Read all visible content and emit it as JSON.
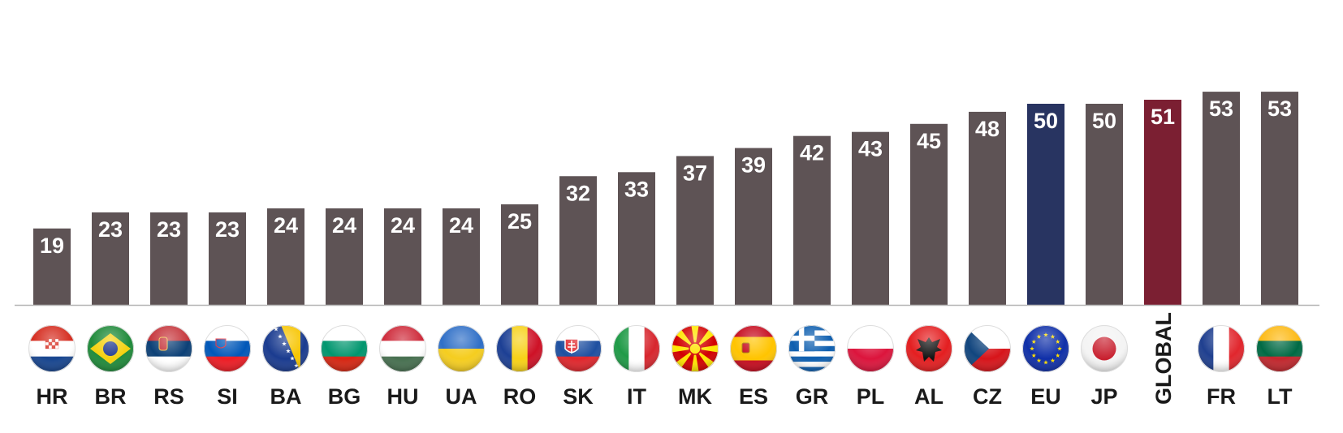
{
  "chart_data": {
    "type": "bar",
    "categories": [
      "HR",
      "BR",
      "RS",
      "SI",
      "BA",
      "BG",
      "HU",
      "UA",
      "RO",
      "SK",
      "IT",
      "MK",
      "ES",
      "GR",
      "PL",
      "AL",
      "CZ",
      "EU",
      "JP",
      "GLOBAL",
      "FR",
      "LT"
    ],
    "values": [
      19,
      23,
      23,
      23,
      24,
      24,
      24,
      24,
      25,
      32,
      33,
      37,
      39,
      42,
      43,
      45,
      48,
      50,
      50,
      51,
      53,
      53
    ],
    "ylim": [
      0,
      75.8
    ],
    "grid": false,
    "data_labels": true,
    "title": "",
    "xlabel": "",
    "ylabel": "",
    "colors": {
      "default": "#5e5355",
      "EU": "#283461",
      "GLOBAL": "#7b1f32",
      "axis": "#b5b5b5"
    },
    "category_icons": [
      "flag-croatia",
      "flag-brazil",
      "flag-serbia",
      "flag-slovenia",
      "flag-bosnia",
      "flag-bulgaria",
      "flag-hungary",
      "flag-ukraine",
      "flag-romania",
      "flag-slovakia",
      "flag-italy",
      "flag-north-macedonia",
      "flag-spain",
      "flag-greece",
      "flag-poland",
      "flag-albania",
      "flag-czechia",
      "flag-eu",
      "flag-japan",
      "",
      "flag-france",
      "flag-lithuania"
    ]
  }
}
